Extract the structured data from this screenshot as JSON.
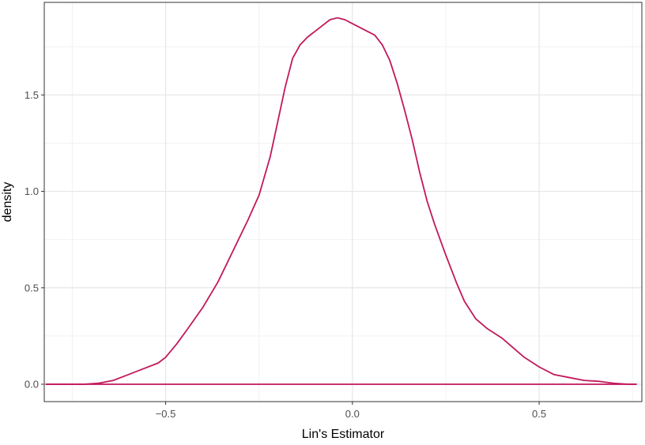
{
  "chart_data": {
    "type": "line",
    "title": "",
    "xlabel": "Lin's Estimator",
    "ylabel": "density",
    "xlim": [
      -0.825,
      0.775
    ],
    "ylim": [
      -0.09,
      1.98
    ],
    "grid": true,
    "theme": "bw",
    "x_ticks": [
      {
        "value": -0.5,
        "label": "−0.5"
      },
      {
        "value": 0.0,
        "label": "0.0"
      },
      {
        "value": 0.5,
        "label": "0.5"
      }
    ],
    "y_ticks": [
      {
        "value": 0.0,
        "label": "0.0"
      },
      {
        "value": 0.5,
        "label": "0.5"
      },
      {
        "value": 1.0,
        "label": "1.0"
      },
      {
        "value": 1.5,
        "label": "1.5"
      }
    ],
    "x_minor": [
      -0.75,
      -0.25,
      0.25,
      0.75
    ],
    "y_minor": [
      0.25,
      0.75,
      1.25,
      1.75
    ],
    "series": [
      {
        "color": "#C2185B",
        "x": [
          -0.82,
          -0.76,
          -0.72,
          -0.68,
          -0.64,
          -0.6,
          -0.56,
          -0.52,
          -0.5,
          -0.47,
          -0.44,
          -0.4,
          -0.36,
          -0.32,
          -0.3,
          -0.28,
          -0.25,
          -0.22,
          -0.2,
          -0.18,
          -0.16,
          -0.14,
          -0.12,
          -0.1,
          -0.08,
          -0.06,
          -0.04,
          -0.02,
          0.0,
          0.02,
          0.04,
          0.06,
          0.08,
          0.1,
          0.12,
          0.14,
          0.16,
          0.18,
          0.2,
          0.22,
          0.25,
          0.28,
          0.3,
          0.33,
          0.36,
          0.4,
          0.43,
          0.46,
          0.5,
          0.54,
          0.58,
          0.62,
          0.66,
          0.7,
          0.74,
          0.76
        ],
        "y": [
          0.0,
          0.0,
          0.0,
          0.005,
          0.02,
          0.05,
          0.08,
          0.11,
          0.14,
          0.21,
          0.29,
          0.4,
          0.53,
          0.69,
          0.77,
          0.85,
          0.98,
          1.18,
          1.36,
          1.54,
          1.69,
          1.76,
          1.8,
          1.83,
          1.86,
          1.89,
          1.9,
          1.89,
          1.87,
          1.85,
          1.83,
          1.81,
          1.76,
          1.68,
          1.56,
          1.42,
          1.27,
          1.1,
          0.95,
          0.83,
          0.67,
          0.52,
          0.43,
          0.34,
          0.29,
          0.24,
          0.19,
          0.14,
          0.09,
          0.05,
          0.035,
          0.02,
          0.015,
          0.005,
          0.0,
          0.0
        ]
      },
      {
        "color": "#C2185B",
        "x": [
          -0.82,
          0.76
        ],
        "y": [
          0.0,
          0.0
        ]
      }
    ]
  }
}
